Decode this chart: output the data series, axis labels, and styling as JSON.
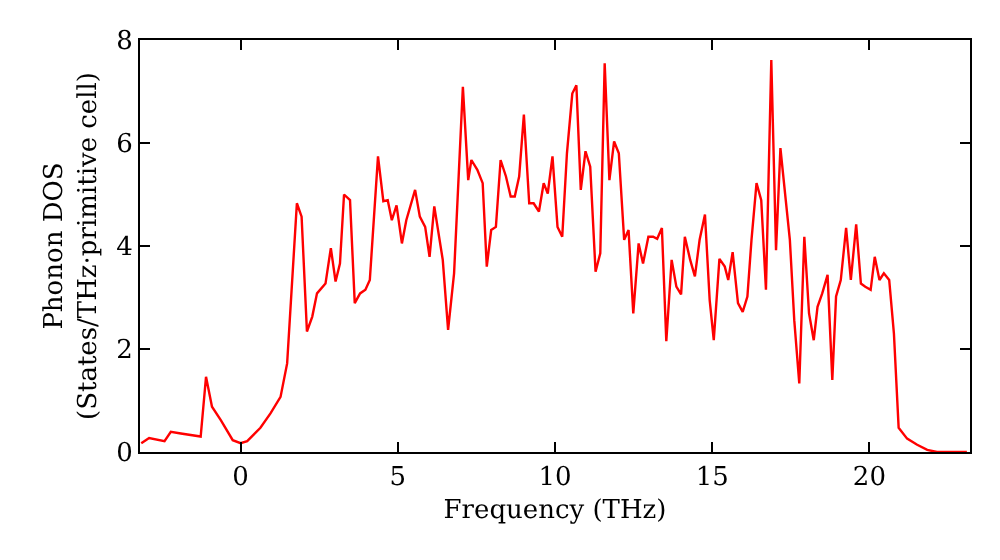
{
  "chart_data": {
    "type": "line",
    "xlabel": "Frequency (THz)",
    "ylabel": "Phonon DOS\n(States/THz·primitive cell)",
    "xlim": [
      -3.2,
      23.2
    ],
    "ylim": [
      0,
      8
    ],
    "xticks": [
      0,
      5,
      10,
      15,
      20
    ],
    "yticks": [
      0,
      2,
      4,
      6,
      8
    ],
    "marker": "none",
    "line_style": "solid",
    "series": [
      {
        "color": "#ff0000",
        "x": [
          -3.16,
          -2.91,
          -2.42,
          -2.22,
          -1.9,
          -1.27,
          -1.1,
          -0.91,
          -0.63,
          -0.25,
          0,
          0.21,
          0.63,
          0.95,
          1.27,
          1.48,
          1.79,
          1.94,
          2.11,
          2.28,
          2.43,
          2.7,
          2.87,
          3.02,
          3.16,
          3.29,
          3.48,
          3.63,
          3.8,
          3.97,
          4.11,
          4.37,
          4.54,
          4.68,
          4.81,
          4.96,
          5.13,
          5.27,
          5.55,
          5.7,
          5.87,
          6.01,
          6.16,
          6.43,
          6.6,
          6.79,
          7.07,
          7.24,
          7.34,
          7.53,
          7.7,
          7.83,
          7.97,
          8.12,
          8.27,
          8.44,
          8.59,
          8.72,
          8.86,
          9.01,
          9.18,
          9.32,
          9.49,
          9.64,
          9.77,
          9.92,
          10.08,
          10.23,
          10.38,
          10.55,
          10.68,
          10.82,
          10.97,
          11.12,
          11.29,
          11.44,
          11.58,
          11.73,
          11.88,
          12.03,
          12.2,
          12.34,
          12.49,
          12.66,
          12.8,
          12.97,
          13.12,
          13.25,
          13.4,
          13.54,
          13.71,
          13.86,
          14.01,
          14.13,
          14.3,
          14.45,
          14.6,
          14.77,
          14.92,
          15.05,
          15.23,
          15.4,
          15.51,
          15.65,
          15.82,
          15.97,
          16.12,
          16.25,
          16.41,
          16.56,
          16.71,
          16.88,
          17.03,
          17.17,
          17.34,
          17.47,
          17.61,
          17.77,
          17.93,
          18.08,
          18.23,
          18.35,
          18.5,
          18.67,
          18.82,
          18.94,
          19.09,
          19.26,
          19.41,
          19.58,
          19.73,
          19.87,
          20.04,
          20.17,
          20.32,
          20.46,
          20.63,
          20.78,
          20.93,
          21.2,
          21.52,
          21.84,
          22.15,
          23.1
        ],
        "values": [
          0.17,
          0.27,
          0.21,
          0.39,
          0.36,
          0.3,
          1.46,
          0.88,
          0.62,
          0.23,
          0.17,
          0.21,
          0.47,
          0.75,
          1.07,
          1.72,
          4.83,
          4.57,
          2.34,
          2.63,
          3.08,
          3.27,
          3.96,
          3.31,
          3.66,
          5.0,
          4.89,
          2.89,
          3.08,
          3.15,
          3.34,
          5.74,
          4.87,
          4.89,
          4.5,
          4.79,
          4.05,
          4.5,
          5.09,
          4.57,
          4.37,
          3.79,
          4.77,
          3.73,
          2.37,
          3.47,
          7.09,
          5.28,
          5.67,
          5.48,
          5.22,
          3.6,
          4.31,
          4.37,
          5.67,
          5.35,
          4.96,
          4.96,
          5.35,
          6.55,
          4.83,
          4.83,
          4.67,
          5.22,
          5.02,
          5.74,
          4.37,
          4.18,
          5.8,
          6.96,
          7.12,
          5.09,
          5.84,
          5.54,
          3.5,
          3.86,
          7.55,
          5.28,
          6.03,
          5.8,
          4.12,
          4.31,
          2.69,
          4.05,
          3.66,
          4.18,
          4.18,
          4.14,
          4.35,
          2.15,
          3.73,
          3.21,
          3.06,
          4.18,
          3.73,
          3.41,
          4.12,
          4.61,
          2.95,
          2.17,
          3.75,
          3.6,
          3.34,
          3.88,
          2.89,
          2.72,
          3.02,
          4.12,
          5.22,
          4.89,
          3.15,
          7.61,
          3.92,
          5.9,
          4.89,
          4.12,
          2.56,
          1.33,
          4.18,
          2.69,
          2.17,
          2.82,
          3.08,
          3.44,
          1.4,
          3.02,
          3.34,
          4.35,
          3.34,
          4.42,
          3.27,
          3.21,
          3.15,
          3.79,
          3.34,
          3.47,
          3.34,
          2.3,
          0.47,
          0.26,
          0.14,
          0.04,
          0,
          0
        ]
      }
    ]
  }
}
